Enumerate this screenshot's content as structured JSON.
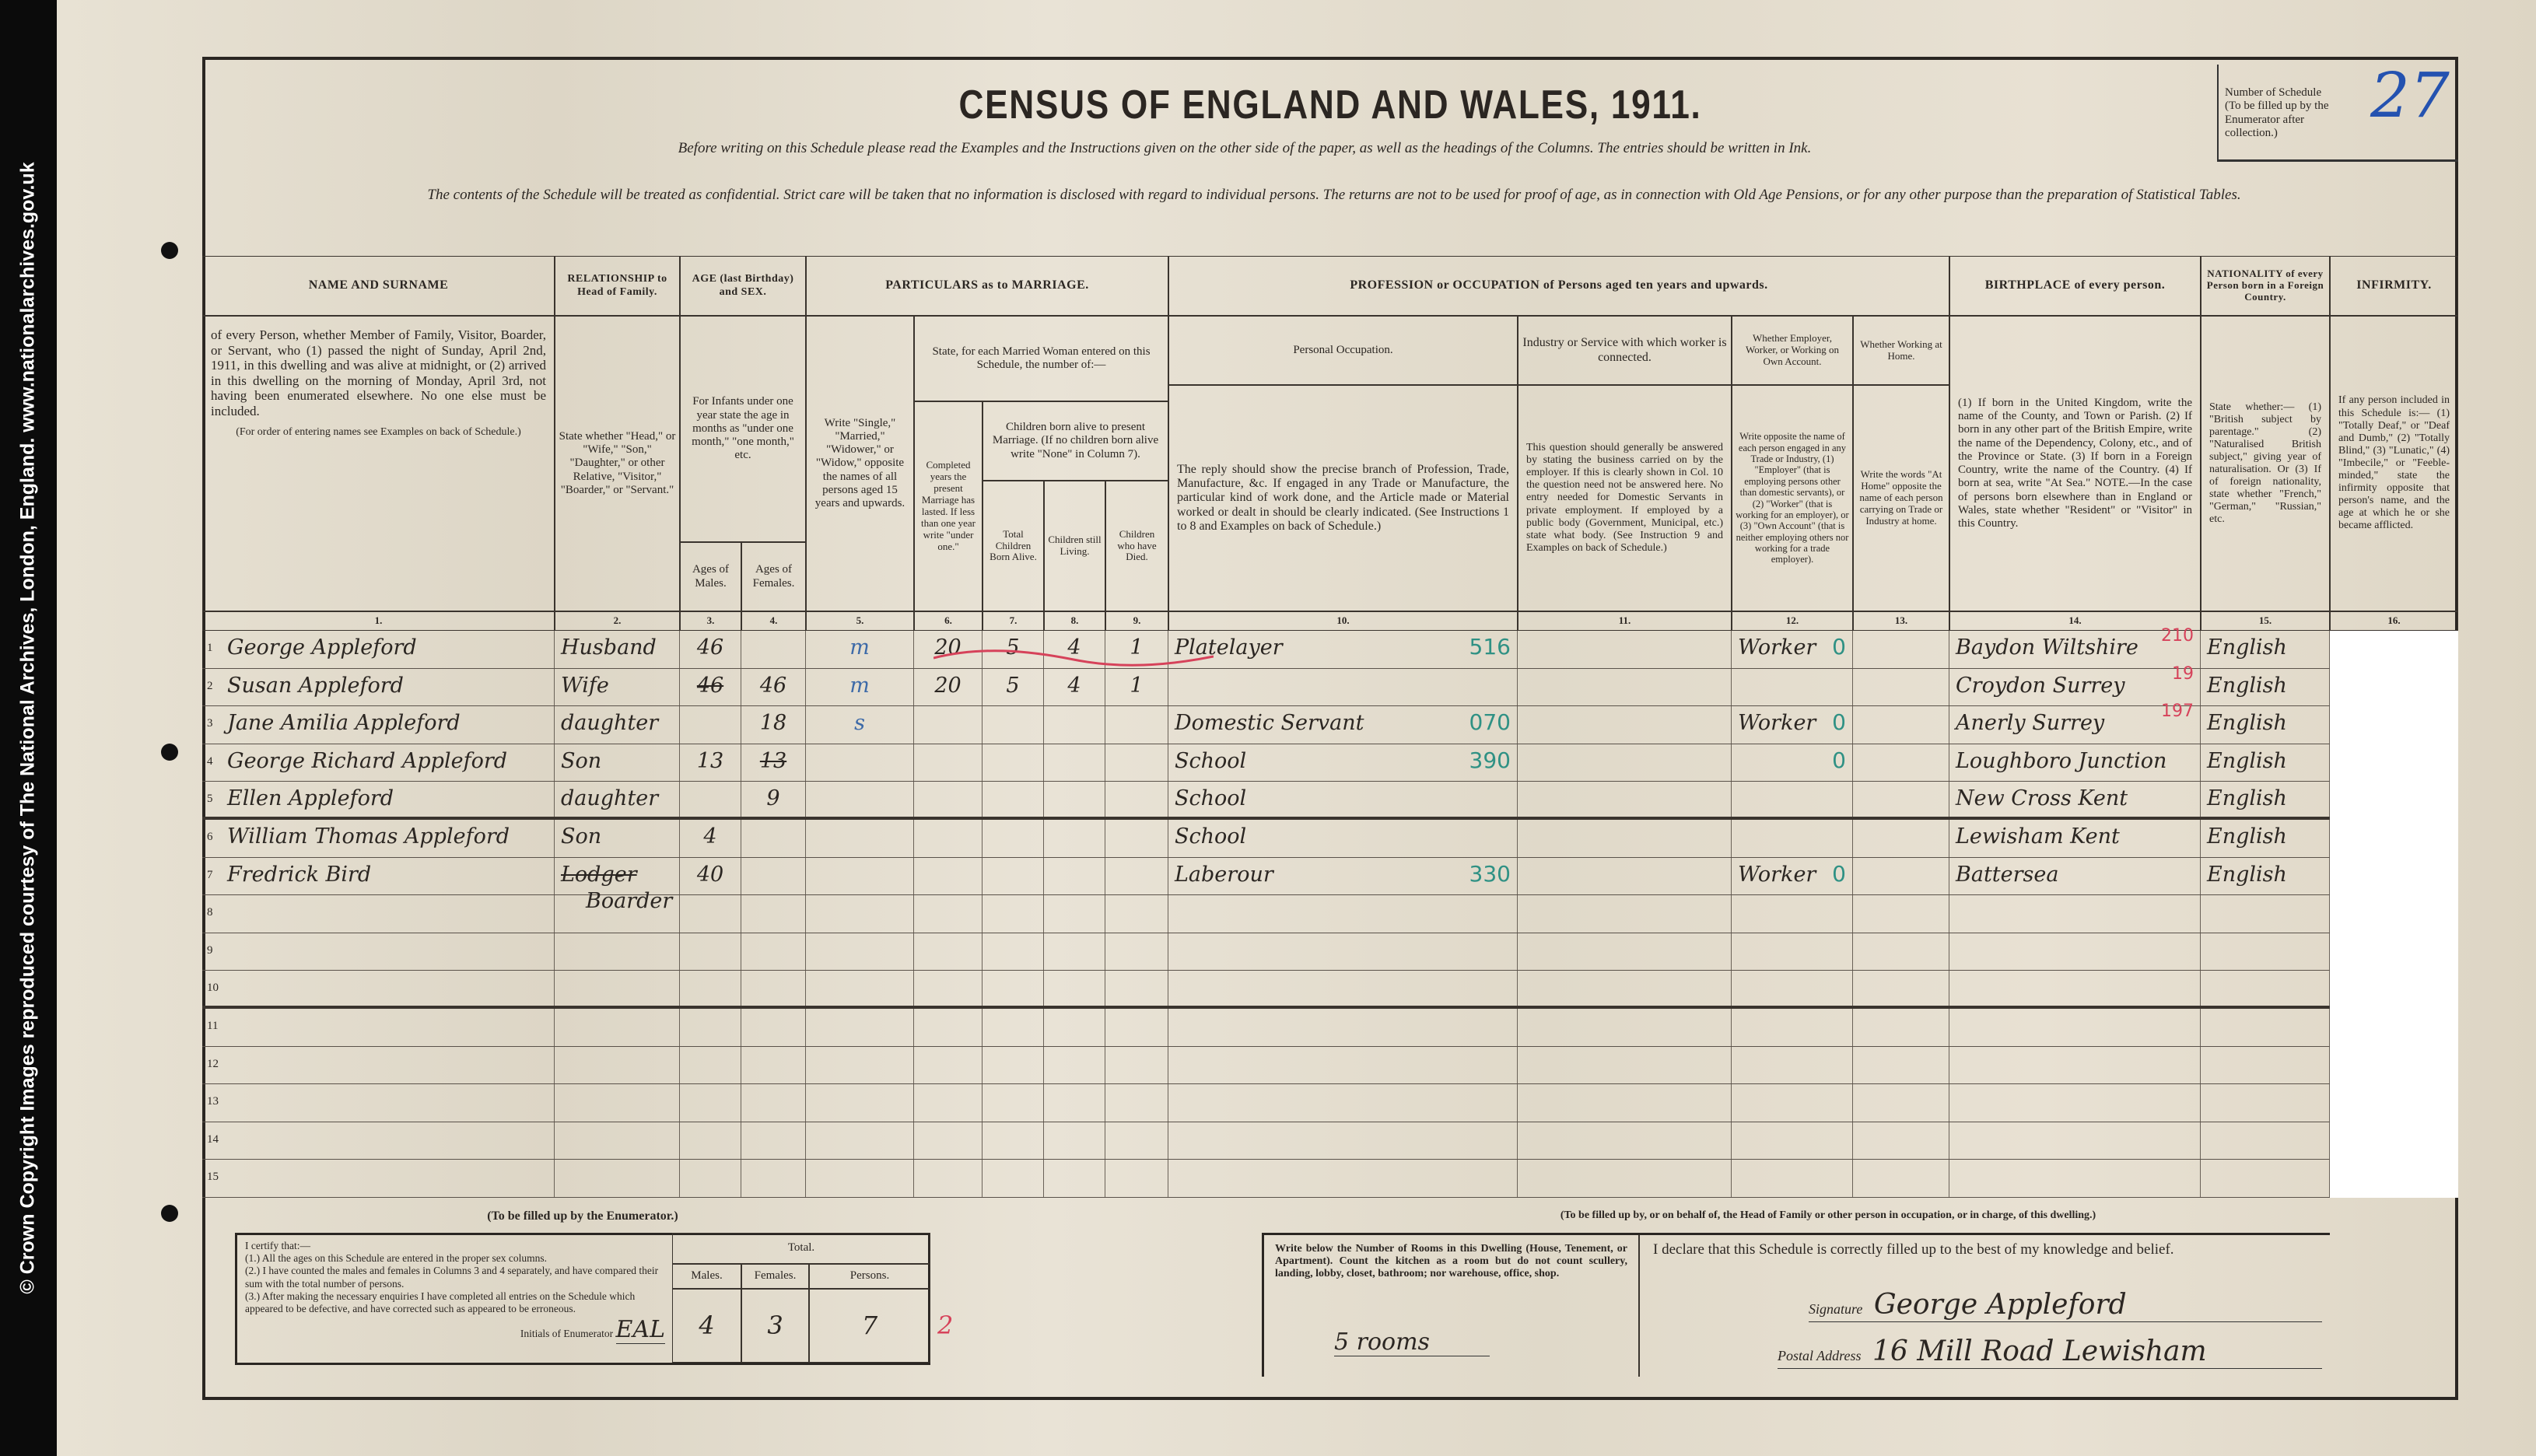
{
  "watermark": "© Crown Copyright Images reproduced courtesy of The National Archives, London, England. www.nationalarchives.gov.uk",
  "title": "CENSUS OF ENGLAND AND WALES, 1911.",
  "instruction_1": "Before writing on this Schedule please read the Examples and the Instructions given on the other side of the paper, as well as the headings of the Columns. The entries should be written in Ink.",
  "instruction_2": "The contents of the Schedule will be treated as confidential. Strict care will be taken that no information is disclosed with regard to individual persons. The returns are not to be used for proof of age, as in connection with Old Age Pensions, or for any other purpose than the preparation of Statistical Tables.",
  "schedule": {
    "label": "Number of Schedule",
    "note": "(To be filled up by the Enumerator after collection.)",
    "value": "27"
  },
  "header": {
    "name_title": "NAME AND SURNAME",
    "name_desc": "of every Person, whether Member of Family, Visitor, Boarder, or Servant, who (1) passed the night of Sunday, April 2nd, 1911, in this dwelling and was alive at midnight, or (2) arrived in this dwelling on the morning of Monday, April 3rd, not having been enumerated elsewhere. No one else must be included.",
    "name_note": "(For order of entering names see Examples on back of Schedule.)",
    "rel_title": "RELATIONSHIP to Head of Family.",
    "rel_desc": "State whether \"Head,\" or \"Wife,\" \"Son,\" \"Daughter,\" or other Relative, \"Visitor,\" \"Boarder,\" or \"Servant.\"",
    "age_title": "AGE (last Birthday) and SEX.",
    "age_desc": "For Infants under one year state the age in months as \"under one month,\" \"one month,\" etc.",
    "age_males": "Ages of Males.",
    "age_females": "Ages of Females.",
    "marriage_title": "PARTICULARS as to MARRIAGE.",
    "condition_desc": "Write \"Single,\" \"Married,\" \"Widower,\" or \"Widow,\" opposite the names of all persons aged 15 years and upwards.",
    "married_woman": "State, for each Married Woman entered on this Schedule, the number of:—",
    "years_desc": "Completed years the present Marriage has lasted. If less than one year write \"under one.\"",
    "children_desc": "Children born alive to present Marriage. (If no children born alive write \"None\" in Column 7).",
    "children_total": "Total Children Born Alive.",
    "children_living": "Children still Living.",
    "children_died": "Children who have Died.",
    "prof_title": "PROFESSION or OCCUPATION of Persons aged ten years and upwards.",
    "personal_occ": "Personal Occupation.",
    "personal_occ_desc": "The reply should show the precise branch of Profession, Trade, Manufacture, &c. If engaged in any Trade or Manufacture, the particular kind of work done, and the Article made or Material worked or dealt in should be clearly indicated. (See Instructions 1 to 8 and Examples on back of Schedule.)",
    "industry": "Industry or Service with which worker is connected.",
    "industry_desc": "This question should generally be answered by stating the business carried on by the employer. If this is clearly shown in Col. 10 the question need not be answered here. No entry needed for Domestic Servants in private employment. If employed by a public body (Government, Municipal, etc.) state what body. (See Instruction 9 and Examples on back of Schedule.)",
    "employer": "Whether Employer, Worker, or Working on Own Account.",
    "employer_desc": "Write opposite the name of each person engaged in any Trade or Industry, (1) \"Employer\" (that is employing persons other than domestic servants), or (2) \"Worker\" (that is working for an employer), or (3) \"Own Account\" (that is neither employing others nor working for a trade employer).",
    "home": "Whether Working at Home.",
    "home_desc": "Write the words \"At Home\" opposite the name of each person carrying on Trade or Industry at home.",
    "birth_title": "BIRTHPLACE of every person.",
    "birth_desc": "(1) If born in the United Kingdom, write the name of the County, and Town or Parish. (2) If born in any other part of the British Empire, write the name of the Dependency, Colony, etc., and of the Province or State. (3) If born in a Foreign Country, write the name of the Country. (4) If born at sea, write \"At Sea.\" NOTE.—In the case of persons born elsewhere than in England or Wales, state whether \"Resident\" or \"Visitor\" in this Country.",
    "nat_title": "NATIONALITY of every Person born in a Foreign Country.",
    "nat_desc": "State whether:— (1) \"British subject by parentage.\" (2) \"Naturalised British subject,\" giving year of naturalisation. Or (3) If of foreign nationality, state whether \"French,\" \"German,\" \"Russian,\" etc.",
    "inf_title": "INFIRMITY.",
    "inf_desc": "If any person included in this Schedule is:— (1) \"Totally Deaf,\" or \"Deaf and Dumb,\" (2) \"Totally Blind,\" (3) \"Lunatic,\" (4) \"Imbecile,\" or \"Feeble-minded,\" state the infirmity opposite that person's name, and the age at which he or she became afflicted.",
    "col_numbers": [
      "1.",
      "2.",
      "3.",
      "4.",
      "5.",
      "6.",
      "7.",
      "8.",
      "9.",
      "10.",
      "11.",
      "12.",
      "13.",
      "14.",
      "15.",
      "16."
    ]
  },
  "row_numbers": [
    "1",
    "2",
    "3",
    "4",
    "5",
    "6",
    "7",
    "8",
    "9",
    "10",
    "11",
    "12",
    "13",
    "14",
    "15"
  ],
  "rows": [
    {
      "name": "George Appleford",
      "relationship": "Husband",
      "age_male": "46",
      "condition": "m",
      "years_married": "20",
      "children_born": "5",
      "children_living": "4",
      "children_died": "1",
      "occupation": "Platelayer",
      "occupation_code": "516",
      "employment": "Worker",
      "employment_code": "0",
      "birthplace": "Baydon Wiltshire",
      "birthplace_code": "210",
      "nationality": "English"
    },
    {
      "name": "Susan Appleford",
      "relationship": "Wife",
      "age_male_struck": "46",
      "age_female": "46",
      "condition": "m",
      "years_married": "20",
      "children_born": "5",
      "children_living": "4",
      "children_died": "1",
      "birthplace": "Croydon Surrey",
      "birthplace_code": "19",
      "nationality": "English"
    },
    {
      "name": "Jane Amilia Appleford",
      "relationship": "daughter",
      "age_female": "18",
      "condition": "s",
      "occupation": "Domestic Servant",
      "occupation_code": "070",
      "employment": "Worker",
      "employment_code": "0",
      "birthplace": "Anerly Surrey",
      "birthplace_code": "197",
      "nationality": "English"
    },
    {
      "name": "George Richard Appleford",
      "relationship": "Son",
      "age_male": "13",
      "age_female_struck": "13",
      "occupation": "School",
      "occupation_code": "390",
      "employment_code": "0",
      "birthplace": "Loughboro Junction",
      "nationality": "English"
    },
    {
      "name": "Ellen Appleford",
      "relationship": "daughter",
      "age_female": "9",
      "occupation": "School",
      "birthplace": "New Cross Kent",
      "nationality": "English"
    },
    {
      "name": "William Thomas Appleford",
      "relationship": "Son",
      "age_male": "4",
      "occupation": "School",
      "birthplace": "Lewisham Kent",
      "nationality": "English"
    },
    {
      "name": "Fredrick Bird",
      "relationship_struck": "Lodger",
      "relationship": "Boarder",
      "age_male": "40",
      "occupation": "Laberour",
      "occupation_code": "330",
      "employment": "Worker",
      "employment_code": "0",
      "birthplace": "Battersea",
      "nationality": "English"
    }
  ],
  "enumerator": {
    "heading": "(To be filled up by the Enumerator.)",
    "certify": "I certify that:—",
    "points": [
      "(1.) All the ages on this Schedule are entered in the proper sex columns.",
      "(2.) I have counted the males and females in Columns 3 and 4 separately, and have compared their sum with the total number of persons.",
      "(3.) After making the necessary enquiries I have completed all entries on the Schedule which appeared to be defective, and have corrected such as appeared to be erroneous."
    ],
    "initials_label": "Initials of Enumerator",
    "initials": "EAL",
    "total_label": "Total.",
    "males_label": "Males.",
    "females_label": "Females.",
    "persons_label": "Persons.",
    "males": "4",
    "females": "3",
    "persons": "7",
    "red_mark": "2"
  },
  "head": {
    "heading": "(To be filled up by, or on behalf of, the Head of Family or other person in occupation, or in charge, of this dwelling.)",
    "rooms_instruction": "Write below the Number of Rooms in this Dwelling (House, Tenement, or Apartment). Count the kitchen as a room but do not count scullery, landing, lobby, closet, bathroom; nor warehouse, office, shop.",
    "rooms": "5 rooms",
    "declaration": "I declare that this Schedule is correctly filled up to the best of my knowledge and belief.",
    "signature_label": "Signature",
    "signature": "George Appleford",
    "address_label": "Postal Address",
    "address": "16 Mill Road Lewisham"
  },
  "colors": {
    "paper": "#e4ddcd",
    "ink": "#2b2622",
    "code_teal": "#2f9184",
    "enumerator_red": "#d6425a",
    "schedule_blue": "#2452b0"
  }
}
